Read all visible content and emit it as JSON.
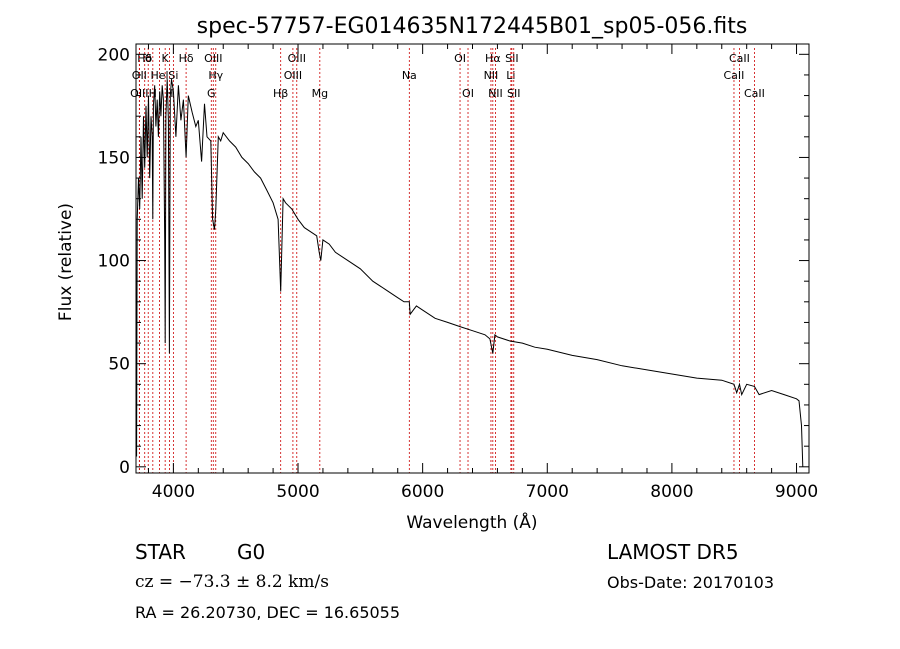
{
  "chart_data": {
    "type": "line",
    "title": "spec-57757-EG014635N172445B01_sp05-056.fits",
    "xlabel": "Wavelength (Å)",
    "ylabel": "Flux (relative)",
    "xlim": [
      3700,
      9100
    ],
    "ylim": [
      -3,
      205
    ],
    "xticks": [
      4000,
      5000,
      6000,
      7000,
      8000,
      9000
    ],
    "yticks": [
      0,
      50,
      100,
      150,
      200
    ],
    "grid": false,
    "series": [
      {
        "x": [
          3700,
          3705,
          3710,
          3720,
          3730,
          3740,
          3750,
          3760,
          3770,
          3780,
          3790,
          3800,
          3810,
          3820,
          3830,
          3835,
          3840,
          3850,
          3860,
          3870,
          3880,
          3890,
          3900,
          3910,
          3920,
          3930,
          3934,
          3940,
          3950,
          3960,
          3968,
          3975,
          3985,
          4000,
          4020,
          4040,
          4060,
          4080,
          4102,
          4120,
          4150,
          4180,
          4200,
          4226,
          4250,
          4270,
          4300,
          4315,
          4330,
          4340,
          4360,
          4380,
          4400,
          4450,
          4500,
          4550,
          4600,
          4650,
          4700,
          4750,
          4800,
          4840,
          4861,
          4880,
          4900,
          4950,
          5000,
          5050,
          5100,
          5150,
          5170,
          5183,
          5200,
          5250,
          5300,
          5400,
          5500,
          5600,
          5700,
          5800,
          5850,
          5893,
          5900,
          5950,
          6000,
          6100,
          6200,
          6300,
          6400,
          6500,
          6540,
          6563,
          6580,
          6600,
          6700,
          6800,
          6900,
          7000,
          7200,
          7400,
          7600,
          7800,
          8000,
          8200,
          8400,
          8498,
          8520,
          8542,
          8560,
          8600,
          8662,
          8700,
          8800,
          8900,
          9000,
          9020,
          9040,
          9050
        ],
        "y": [
          60,
          5,
          120,
          140,
          125,
          160,
          130,
          170,
          145,
          175,
          150,
          180,
          140,
          170,
          160,
          120,
          175,
          185,
          165,
          178,
          160,
          182,
          170,
          185,
          178,
          110,
          60,
          170,
          188,
          168,
          55,
          180,
          188,
          182,
          160,
          185,
          168,
          178,
          150,
          180,
          172,
          165,
          168,
          148,
          176,
          160,
          158,
          120,
          115,
          125,
          160,
          158,
          162,
          158,
          155,
          150,
          147,
          143,
          140,
          134,
          128,
          120,
          85,
          130,
          128,
          125,
          120,
          116,
          114,
          112,
          104,
          100,
          110,
          108,
          104,
          100,
          96,
          90,
          86,
          82,
          80,
          80,
          74,
          78,
          76,
          72,
          70,
          68,
          66,
          64,
          62,
          55,
          64,
          63,
          61,
          60,
          58,
          57,
          54,
          52,
          49,
          47,
          45,
          43,
          42,
          40,
          36,
          40,
          35,
          40,
          39,
          35,
          37,
          35,
          33,
          32,
          20,
          0
        ]
      }
    ],
    "lines": [
      {
        "label": "Hδ",
        "wavelength": 3770,
        "row": 1
      },
      {
        "label": "OII",
        "wavelength": 3727,
        "row": 2
      },
      {
        "label": "OIII",
        "wavelength": 3727,
        "row": 3
      },
      {
        "label": "θ",
        "wavelength": 3798,
        "row": 1
      },
      {
        "label": "H",
        "wavelength": 3835,
        "row": 3
      },
      {
        "label": "Hel",
        "wavelength": 3889,
        "row": 2
      },
      {
        "label": "K",
        "wavelength": 3934,
        "row": 1
      },
      {
        "label": "H",
        "wavelength": 3968,
        "row": 3
      },
      {
        "label": "Si",
        "wavelength": 4000,
        "row": 2
      },
      {
        "label": "Hδ",
        "wavelength": 4102,
        "row": 1
      },
      {
        "label": "OIII",
        "wavelength": 4320,
        "row": 1
      },
      {
        "label": "Hγ",
        "wavelength": 4340,
        "row": 2
      },
      {
        "label": "G",
        "wavelength": 4304,
        "row": 3
      },
      {
        "label": "Hβ",
        "wavelength": 4861,
        "row": 3
      },
      {
        "label": "OIII",
        "wavelength": 4990,
        "row": 1
      },
      {
        "label": "OIII",
        "wavelength": 4959,
        "row": 2
      },
      {
        "label": "Mg",
        "wavelength": 5175,
        "row": 3
      },
      {
        "label": "Na",
        "wavelength": 5893,
        "row": 2
      },
      {
        "label": "OI",
        "wavelength": 6300,
        "row": 1
      },
      {
        "label": "OI",
        "wavelength": 6364,
        "row": 3
      },
      {
        "label": "Hα",
        "wavelength": 6563,
        "row": 1
      },
      {
        "label": "SII",
        "wavelength": 6716,
        "row": 1
      },
      {
        "label": "NII",
        "wavelength": 6548,
        "row": 2
      },
      {
        "label": "Li",
        "wavelength": 6708,
        "row": 2
      },
      {
        "label": "NII",
        "wavelength": 6584,
        "row": 3
      },
      {
        "label": "SII",
        "wavelength": 6731,
        "row": 3
      },
      {
        "label": "CaII",
        "wavelength": 8542,
        "row": 1
      },
      {
        "label": "CaII",
        "wavelength": 8498,
        "row": 2
      },
      {
        "label": "CaII",
        "wavelength": 8662,
        "row": 3
      }
    ]
  },
  "footer": {
    "class_label": "STAR",
    "subclass_label": "G0",
    "survey": "LAMOST DR5",
    "redshift": "cz = −73.3 ± 8.2 km/s",
    "obs_date": "Obs-Date: 20170103",
    "coords": "RA =  26.20730, DEC =  16.65055"
  }
}
